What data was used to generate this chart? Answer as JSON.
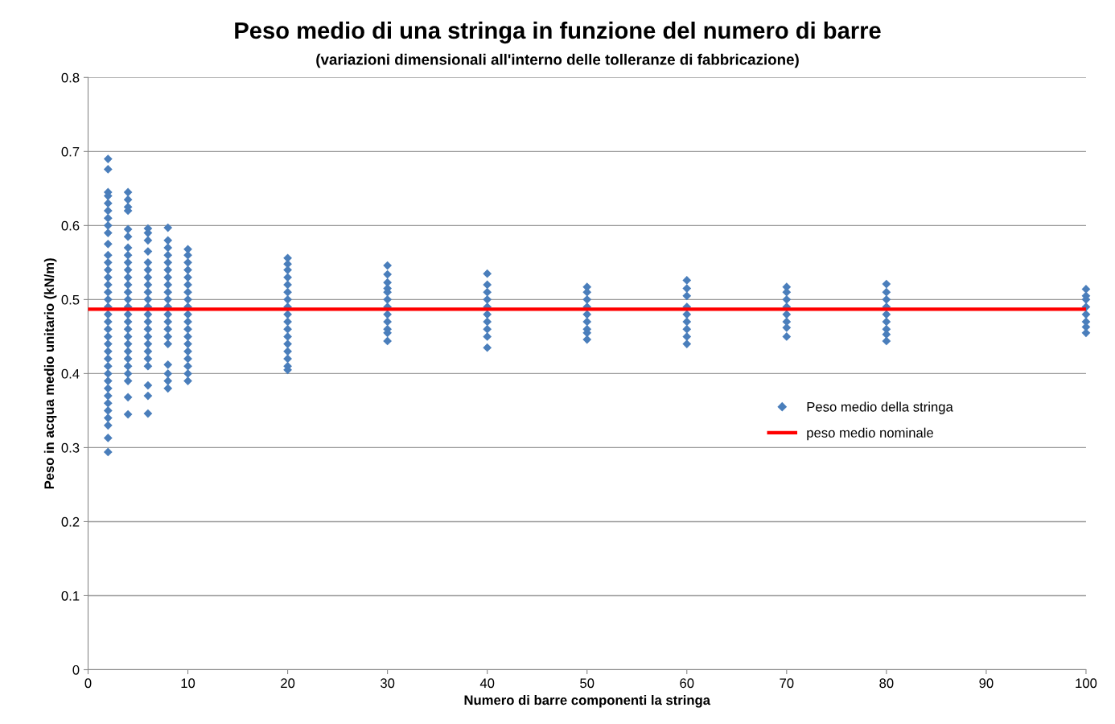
{
  "chart_data": {
    "type": "scatter",
    "title": "Peso medio di una stringa in funzione del numero di barre",
    "subtitle": "(variazioni dimensionali all'interno delle tolleranze di fabbricazione)",
    "xlabel": "Numero di barre componenti la stringa",
    "ylabel": "Peso in acqua medio unitario (kN/m)",
    "xlim": [
      0,
      100
    ],
    "ylim": [
      0,
      0.8
    ],
    "xticks": [
      0,
      10,
      20,
      30,
      40,
      50,
      60,
      70,
      80,
      90,
      100
    ],
    "yticks": [
      0,
      0.1,
      0.2,
      0.3,
      0.4,
      0.5,
      0.6,
      0.7,
      0.8
    ],
    "grid": "y",
    "legend": "right",
    "series": [
      {
        "name": "Peso medio della stringa",
        "marker": "diamond",
        "color": "#4a7ebb",
        "x": [
          2,
          2,
          2,
          2,
          2,
          2,
          2,
          2,
          2,
          2,
          2,
          2,
          2,
          2,
          2,
          2,
          2,
          2,
          2,
          2,
          2,
          2,
          2,
          2,
          2,
          2,
          2,
          2,
          2,
          2,
          2,
          2,
          2,
          2,
          2,
          2,
          4,
          4,
          4,
          4,
          4,
          4,
          4,
          4,
          4,
          4,
          4,
          4,
          4,
          4,
          4,
          4,
          4,
          4,
          4,
          4,
          4,
          4,
          4,
          4,
          4,
          4,
          4,
          6,
          6,
          6,
          6,
          6,
          6,
          6,
          6,
          6,
          6,
          6,
          6,
          6,
          6,
          6,
          6,
          6,
          6,
          6,
          6,
          6,
          6,
          8,
          8,
          8,
          8,
          8,
          8,
          8,
          8,
          8,
          8,
          8,
          8,
          8,
          8,
          8,
          8,
          8,
          8,
          8,
          8,
          10,
          10,
          10,
          10,
          10,
          10,
          10,
          10,
          10,
          10,
          10,
          10,
          10,
          10,
          10,
          10,
          10,
          10,
          10,
          20,
          20,
          20,
          20,
          20,
          20,
          20,
          20,
          20,
          20,
          20,
          20,
          20,
          20,
          20,
          20,
          20,
          30,
          30,
          30,
          30,
          30,
          30,
          30,
          30,
          30,
          30,
          30,
          30,
          40,
          40,
          40,
          40,
          40,
          40,
          40,
          40,
          40,
          40,
          50,
          50,
          50,
          50,
          50,
          50,
          50,
          50,
          50,
          60,
          60,
          60,
          60,
          60,
          60,
          60,
          60,
          60,
          70,
          70,
          70,
          70,
          70,
          70,
          70,
          70,
          80,
          80,
          80,
          80,
          80,
          80,
          80,
          80,
          80,
          100,
          100,
          100,
          100,
          100,
          100,
          100,
          100
        ],
        "values": [
          0.69,
          0.676,
          0.645,
          0.64,
          0.63,
          0.62,
          0.61,
          0.6,
          0.59,
          0.575,
          0.56,
          0.55,
          0.54,
          0.53,
          0.52,
          0.51,
          0.5,
          0.49,
          0.48,
          0.47,
          0.46,
          0.45,
          0.44,
          0.43,
          0.42,
          0.41,
          0.4,
          0.39,
          0.38,
          0.37,
          0.36,
          0.35,
          0.34,
          0.33,
          0.313,
          0.294,
          0.645,
          0.635,
          0.625,
          0.62,
          0.595,
          0.585,
          0.57,
          0.56,
          0.55,
          0.54,
          0.53,
          0.52,
          0.51,
          0.5,
          0.49,
          0.48,
          0.47,
          0.46,
          0.45,
          0.44,
          0.43,
          0.42,
          0.41,
          0.4,
          0.39,
          0.368,
          0.345,
          0.596,
          0.59,
          0.58,
          0.565,
          0.55,
          0.54,
          0.53,
          0.52,
          0.51,
          0.5,
          0.49,
          0.48,
          0.47,
          0.46,
          0.45,
          0.44,
          0.43,
          0.42,
          0.41,
          0.384,
          0.37,
          0.346,
          0.597,
          0.58,
          0.57,
          0.56,
          0.55,
          0.54,
          0.53,
          0.52,
          0.51,
          0.5,
          0.49,
          0.48,
          0.47,
          0.46,
          0.45,
          0.44,
          0.412,
          0.4,
          0.39,
          0.38,
          0.568,
          0.56,
          0.55,
          0.54,
          0.53,
          0.52,
          0.51,
          0.5,
          0.49,
          0.48,
          0.47,
          0.46,
          0.45,
          0.44,
          0.43,
          0.42,
          0.41,
          0.4,
          0.39,
          0.556,
          0.548,
          0.54,
          0.53,
          0.52,
          0.51,
          0.5,
          0.49,
          0.48,
          0.47,
          0.46,
          0.45,
          0.44,
          0.43,
          0.42,
          0.41,
          0.405,
          0.546,
          0.534,
          0.523,
          0.515,
          0.51,
          0.5,
          0.49,
          0.48,
          0.47,
          0.46,
          0.455,
          0.444,
          0.535,
          0.52,
          0.51,
          0.5,
          0.49,
          0.48,
          0.47,
          0.46,
          0.45,
          0.435,
          0.517,
          0.51,
          0.5,
          0.49,
          0.48,
          0.47,
          0.46,
          0.455,
          0.446,
          0.526,
          0.515,
          0.505,
          0.49,
          0.48,
          0.47,
          0.46,
          0.45,
          0.44,
          0.517,
          0.51,
          0.5,
          0.49,
          0.48,
          0.47,
          0.462,
          0.45,
          0.521,
          0.51,
          0.5,
          0.49,
          0.48,
          0.47,
          0.46,
          0.453,
          0.444,
          0.514,
          0.505,
          0.5,
          0.49,
          0.48,
          0.47,
          0.463,
          0.455
        ]
      },
      {
        "name": "peso medio nominale",
        "type": "line",
        "marker": "none",
        "line_style": "solid",
        "color": "#ff0000",
        "x": [
          0,
          100
        ],
        "values": [
          0.487,
          0.487
        ]
      }
    ]
  }
}
